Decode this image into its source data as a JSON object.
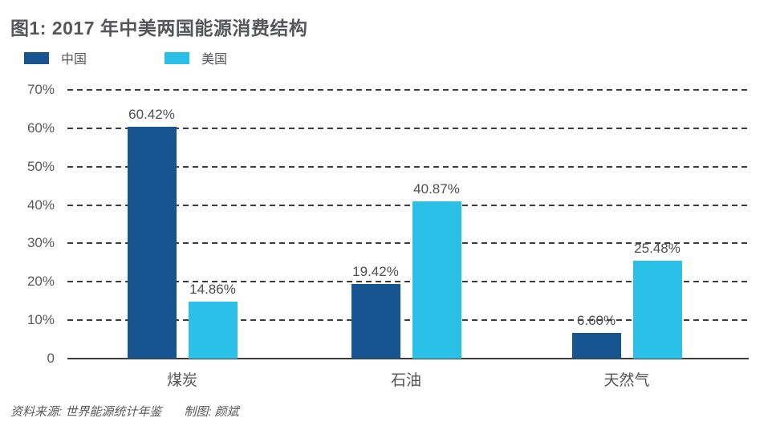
{
  "header": {
    "title": "图1: 2017 年中美两国能源消费结构"
  },
  "footer": {
    "source": "资料来源: 世界能源统计年鉴",
    "credit": "制图: 颜斌"
  },
  "chart_data": {
    "type": "bar",
    "title": "图1: 2017 年中美两国能源消费结构",
    "categories": [
      "煤炭",
      "石油",
      "天然气"
    ],
    "series": [
      {
        "name": "中国",
        "color": "#165590",
        "values": [
          60.42,
          19.42,
          6.6
        ],
        "labels": [
          "60.42%",
          "19.42%",
          "6.60%"
        ]
      },
      {
        "name": "美国",
        "color": "#2bc0e8",
        "values": [
          14.86,
          40.87,
          25.48
        ],
        "labels": [
          "14.86%",
          "40.87%",
          "25.48%"
        ]
      }
    ],
    "xlabel": "",
    "ylabel": "",
    "ylim": [
      0,
      70
    ],
    "y_ticks": [
      "70%",
      "60%",
      "50%",
      "40%",
      "30%",
      "20%",
      "10%",
      "0"
    ],
    "grid": "dashed-horizontal",
    "legend_position": "top-left",
    "background": "#ffffff",
    "gridline_color": "#3c3c3c"
  }
}
